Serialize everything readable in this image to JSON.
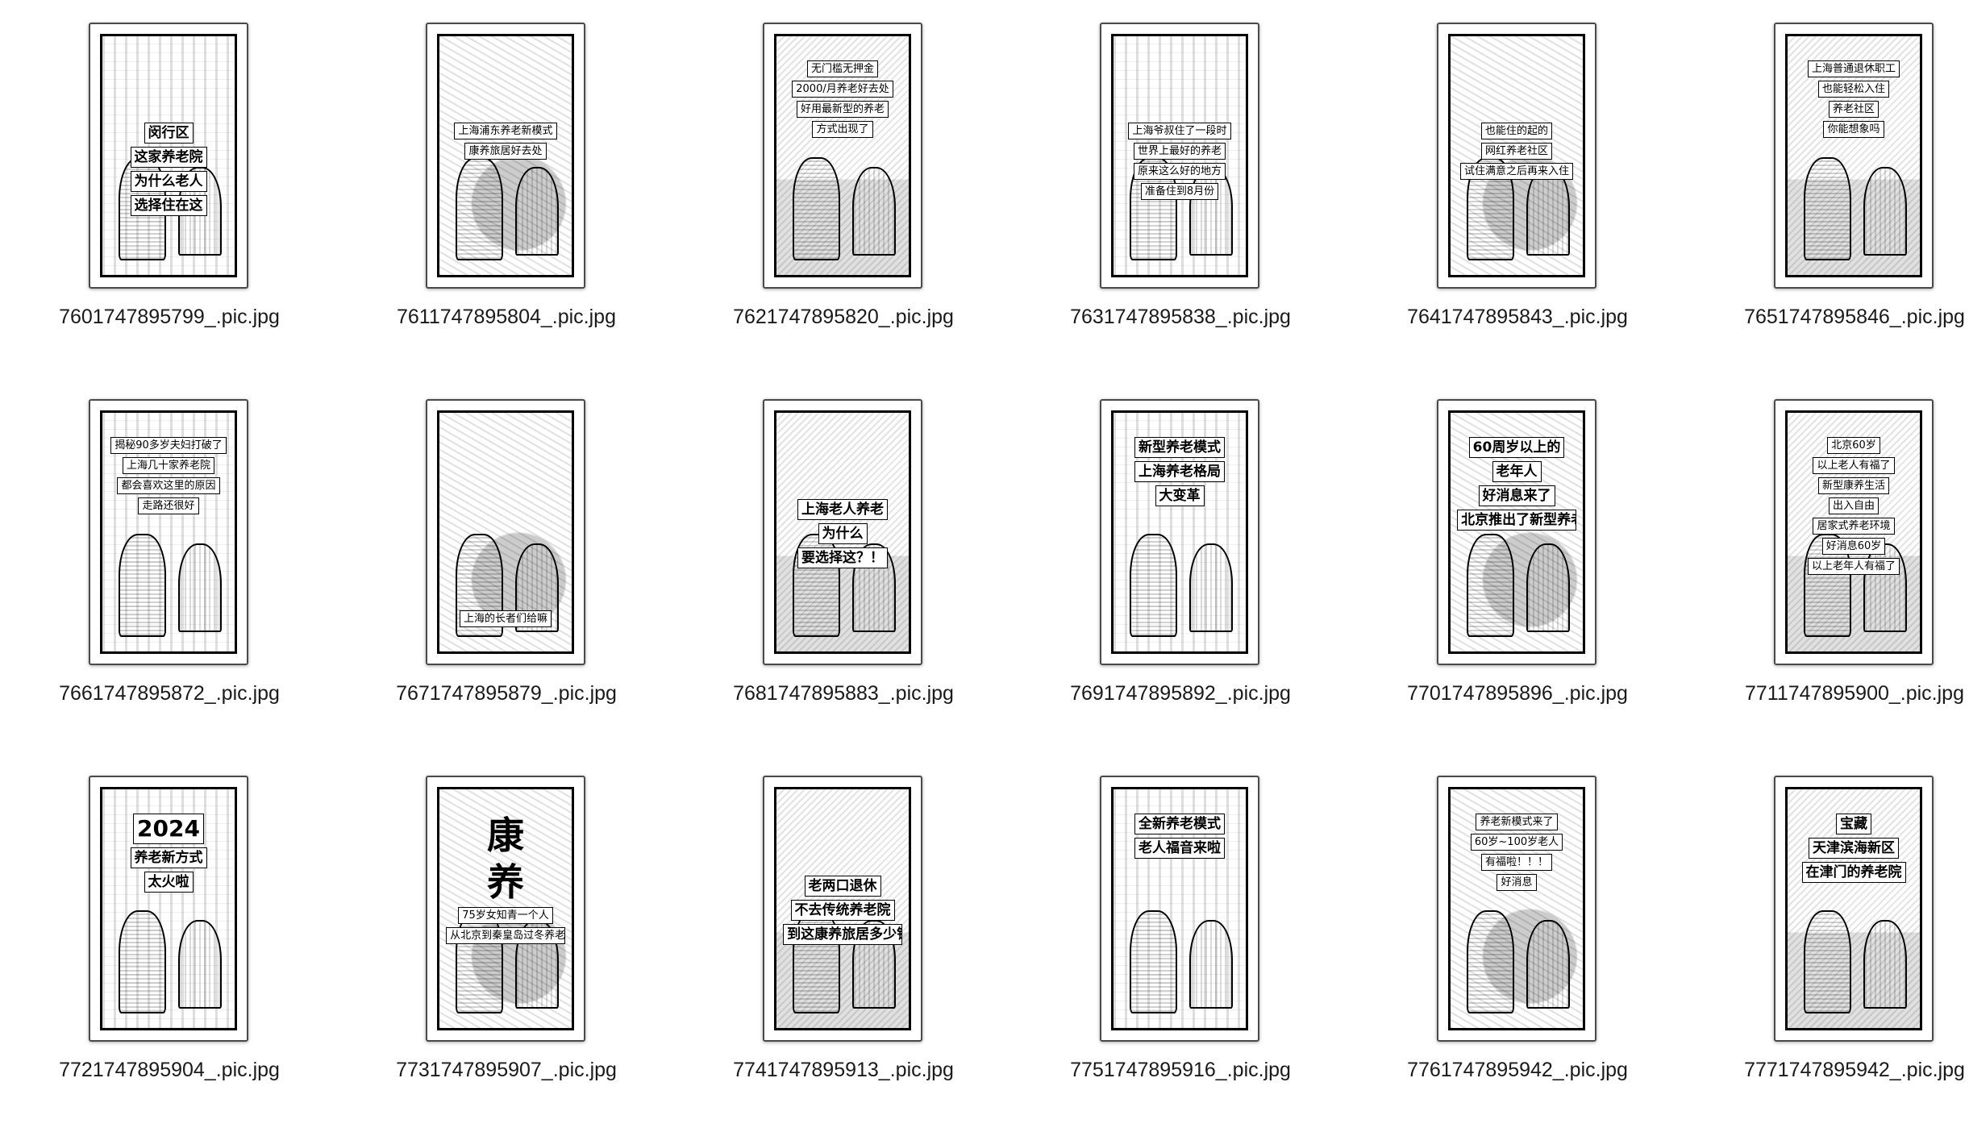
{
  "files": [
    {
      "name": "7601747895799_.pic.jpg",
      "caption": [
        "闵行区",
        "这家养老院",
        "为什么老人",
        "选择住在这"
      ],
      "size": "normal",
      "position": "mid",
      "style": "v1"
    },
    {
      "name": "7611747895804_.pic.jpg",
      "caption": [
        "上海浦东养老新模式",
        "康养旅居好去处"
      ],
      "size": "small",
      "position": "mid",
      "style": "v2"
    },
    {
      "name": "7621747895820_.pic.jpg",
      "caption": [
        "无门槛无押金",
        "2000/月养老好去处",
        "好用最新型的养老",
        "方式出现了"
      ],
      "size": "small",
      "position": "top",
      "style": "v3"
    },
    {
      "name": "7631747895838_.pic.jpg",
      "caption": [
        "上海爷叔住了一段时",
        "世界上最好的养老",
        "原来这么好的地方",
        "准备住到8月份"
      ],
      "size": "small",
      "position": "mid",
      "style": "v1"
    },
    {
      "name": "7641747895843_.pic.jpg",
      "caption": [
        "也能住的起的",
        "网红养老社区",
        "试住满意之后再来入住"
      ],
      "size": "small",
      "position": "mid",
      "style": "v2"
    },
    {
      "name": "7651747895846_.pic.jpg",
      "caption": [
        "上海普通退休职工",
        "也能轻松入住",
        "养老社区",
        "你能想象吗"
      ],
      "size": "small",
      "position": "top",
      "style": "v3"
    },
    {
      "name": "7661747895872_.pic.jpg",
      "caption": [
        "揭秘90多岁夫妇打破了",
        "上海几十家养老院",
        "都会喜欢这里的原因",
        "走路还很好"
      ],
      "size": "small",
      "position": "top",
      "style": "v1"
    },
    {
      "name": "7671747895879_.pic.jpg",
      "caption": [
        "上海的长者们给嘛"
      ],
      "size": "small",
      "position": "bottom",
      "style": "v2"
    },
    {
      "name": "7681747895883_.pic.jpg",
      "caption": [
        "上海老人养老",
        "为什么",
        "要选择这？！"
      ],
      "size": "normal",
      "position": "mid",
      "style": "v3"
    },
    {
      "name": "7691747895892_.pic.jpg",
      "caption": [
        "新型养老模式",
        "上海养老格局",
        "大变革"
      ],
      "size": "normal",
      "position": "top",
      "style": "v1"
    },
    {
      "name": "7701747895896_.pic.jpg",
      "caption": [
        "60周岁以上的",
        "老年人",
        "好消息来了",
        "北京推出了新型养老模式"
      ],
      "size": "normal",
      "position": "top",
      "style": "v2"
    },
    {
      "name": "7711747895900_.pic.jpg",
      "caption": [
        "北京60岁",
        "以上老人有福了",
        "新型康养生活",
        "出入自由",
        "居家式养老环境",
        "好消息60岁",
        "以上老年人有福了"
      ],
      "size": "small",
      "position": "top",
      "style": "v3"
    },
    {
      "name": "7721747895904_.pic.jpg",
      "caption": [
        "2024",
        "养老新方式",
        "太火啦"
      ],
      "size": "large",
      "position": "top",
      "style": "v1"
    },
    {
      "name": "7731747895907_.pic.jpg",
      "caption": [
        "康",
        "养",
        "75岁女知青一个人",
        "从北京到秦皇岛过冬养老"
      ],
      "size": "xlarge",
      "position": "top",
      "style": "v2"
    },
    {
      "name": "7741747895913_.pic.jpg",
      "caption": [
        "老两口退休",
        "不去传统养老院",
        "到这康养旅居多少钱"
      ],
      "size": "normal",
      "position": "mid",
      "style": "v3"
    },
    {
      "name": "7751747895916_.pic.jpg",
      "caption": [
        "全新养老模式",
        "老人福音来啦"
      ],
      "size": "normal",
      "position": "top",
      "style": "v1"
    },
    {
      "name": "7761747895942_.pic.jpg",
      "caption": [
        "养老新模式来了",
        "60岁~100岁老人",
        "有福啦！！！",
        "好消息"
      ],
      "size": "small",
      "position": "top",
      "style": "v2"
    },
    {
      "name": "7771747895942_.pic.jpg",
      "caption": [
        "宝藏",
        "天津滨海新区",
        "在津门的养老院"
      ],
      "size": "normal",
      "position": "top",
      "style": "v3"
    }
  ]
}
